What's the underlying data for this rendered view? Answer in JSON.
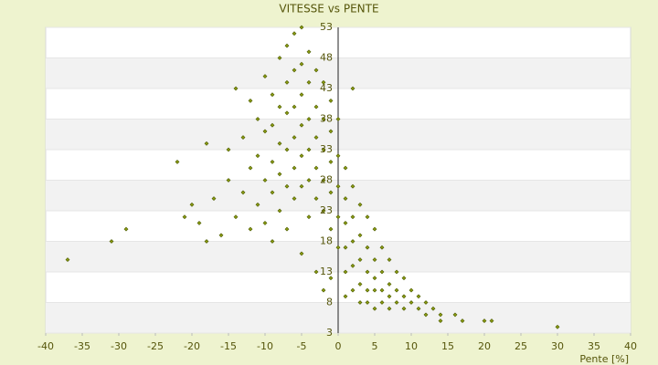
{
  "chart_data": {
    "type": "scatter",
    "title": "VITESSE vs PENTE",
    "x_label": "Pente [%]",
    "xlim": [
      -40,
      40
    ],
    "xticks": [
      -40,
      -35,
      -30,
      -25,
      -20,
      -15,
      -10,
      -5,
      0,
      5,
      10,
      15,
      20,
      25,
      30,
      35,
      40
    ],
    "ylim": [
      3,
      53
    ],
    "yticks": [
      3,
      8,
      13,
      18,
      23,
      28,
      33,
      38,
      43,
      48,
      53
    ],
    "grid": true,
    "color": "#8a9a10",
    "x": [
      -37,
      -31,
      -29,
      -22,
      -21,
      -20,
      -19,
      -18,
      -18,
      -17,
      -16,
      -15,
      -15,
      -14,
      -14,
      -13,
      -13,
      -12,
      -12,
      -12,
      -11,
      -11,
      -11,
      -10,
      -10,
      -10,
      -10,
      -9,
      -9,
      -9,
      -9,
      -9,
      -8,
      -8,
      -8,
      -8,
      -8,
      -7,
      -7,
      -7,
      -7,
      -7,
      -7,
      -6,
      -6,
      -6,
      -6,
      -6,
      -6,
      -5,
      -5,
      -5,
      -5,
      -5,
      -5,
      -5,
      -4,
      -4,
      -4,
      -4,
      -4,
      -4,
      -3,
      -3,
      -3,
      -3,
      -3,
      -3,
      -2,
      -2,
      -2,
      -2,
      -2,
      -2,
      -1,
      -1,
      -1,
      -1,
      -1,
      -1,
      0,
      0,
      0,
      0,
      0,
      1,
      1,
      1,
      1,
      1,
      1,
      2,
      2,
      2,
      2,
      2,
      2,
      3,
      3,
      3,
      3,
      3,
      4,
      4,
      4,
      4,
      4,
      5,
      5,
      5,
      5,
      5,
      6,
      6,
      6,
      6,
      7,
      7,
      7,
      7,
      8,
      8,
      8,
      9,
      9,
      9,
      10,
      10,
      11,
      11,
      12,
      12,
      13,
      14,
      14,
      16,
      17,
      20,
      21,
      30
    ],
    "values": [
      15,
      18,
      20,
      31,
      22,
      24,
      21,
      34,
      18,
      25,
      19,
      33,
      28,
      43,
      22,
      35,
      26,
      41,
      30,
      20,
      38,
      32,
      24,
      45,
      36,
      28,
      21,
      42,
      37,
      31,
      26,
      18,
      48,
      40,
      34,
      29,
      23,
      50,
      44,
      39,
      33,
      27,
      20,
      52,
      46,
      40,
      35,
      30,
      25,
      53,
      47,
      42,
      37,
      32,
      27,
      16,
      49,
      44,
      38,
      33,
      28,
      22,
      46,
      40,
      35,
      30,
      25,
      13,
      44,
      38,
      33,
      28,
      23,
      10,
      41,
      36,
      31,
      26,
      20,
      12,
      38,
      32,
      27,
      22,
      17,
      30,
      25,
      21,
      17,
      13,
      9,
      43,
      27,
      22,
      18,
      14,
      10,
      24,
      19,
      15,
      11,
      8,
      22,
      17,
      13,
      10,
      8,
      20,
      15,
      12,
      10,
      7,
      17,
      13,
      10,
      8,
      15,
      11,
      9,
      7,
      13,
      10,
      8,
      12,
      9,
      7,
      10,
      8,
      9,
      7,
      8,
      6,
      7,
      6,
      5,
      6,
      5,
      5,
      5,
      4
    ]
  }
}
